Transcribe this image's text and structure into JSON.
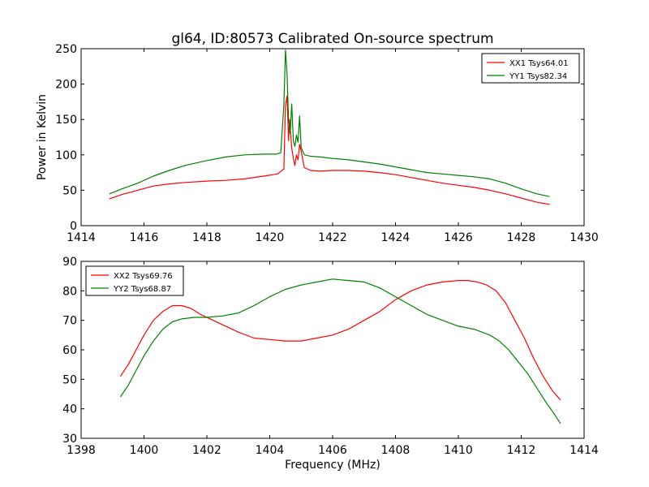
{
  "figure": {
    "title": "gl64, ID:80573 Calibrated On-source spectrum",
    "ylabel": "Power in Kelvin",
    "xlabel": "Frequency (MHz)"
  },
  "chart_data": [
    {
      "type": "line",
      "title": "gl64, ID:80573 Calibrated On-source spectrum",
      "ylabel": "Power in Kelvin",
      "xlabel": "",
      "xlim": [
        1414,
        1430
      ],
      "ylim": [
        0,
        250
      ],
      "xticks": [
        1414,
        1416,
        1418,
        1420,
        1422,
        1424,
        1426,
        1428,
        1430
      ],
      "yticks": [
        0,
        50,
        100,
        150,
        200,
        250
      ],
      "grid": false,
      "legend_position": "top-right",
      "series": [
        {
          "name": "XX1 Tsys64.01",
          "color": "#ff0000",
          "x": [
            1414.9,
            1415.3,
            1415.8,
            1416.3,
            1416.8,
            1417.3,
            1418.0,
            1418.6,
            1419.2,
            1419.8,
            1420.25,
            1420.45,
            1420.5,
            1420.55,
            1420.6,
            1420.63,
            1420.7,
            1420.75,
            1420.8,
            1420.85,
            1420.9,
            1420.95,
            1421.0,
            1421.1,
            1421.3,
            1421.6,
            1422.0,
            1422.5,
            1423.0,
            1423.5,
            1424.0,
            1424.5,
            1425.0,
            1425.5,
            1426.0,
            1426.5,
            1427.0,
            1427.5,
            1428.0,
            1428.5,
            1428.9
          ],
          "y": [
            38,
            44,
            50,
            56,
            59,
            61,
            63,
            64,
            66,
            70,
            73,
            80,
            170,
            183,
            120,
            150,
            110,
            95,
            85,
            100,
            93,
            115,
            105,
            82,
            78,
            77,
            78,
            78,
            77,
            75,
            72,
            68,
            64,
            60,
            57,
            54,
            50,
            45,
            39,
            33,
            30
          ]
        },
        {
          "name": "YY1 Tsys82.34",
          "color": "#008000",
          "x": [
            1414.9,
            1415.3,
            1415.8,
            1416.3,
            1416.8,
            1417.3,
            1418.0,
            1418.6,
            1419.2,
            1419.8,
            1420.2,
            1420.35,
            1420.45,
            1420.5,
            1420.55,
            1420.6,
            1420.65,
            1420.7,
            1420.75,
            1420.8,
            1420.85,
            1420.9,
            1420.95,
            1421.0,
            1421.1,
            1421.3,
            1421.6,
            1422.0,
            1422.5,
            1423.0,
            1423.5,
            1424.0,
            1424.5,
            1425.0,
            1425.5,
            1426.0,
            1426.5,
            1427.0,
            1427.5,
            1428.0,
            1428.5,
            1428.9
          ],
          "y": [
            45,
            52,
            60,
            70,
            78,
            85,
            92,
            97,
            100,
            101,
            101,
            103,
            170,
            248,
            215,
            150,
            130,
            172,
            120,
            112,
            128,
            118,
            155,
            110,
            100,
            98,
            97,
            95,
            93,
            90,
            87,
            83,
            79,
            75,
            73,
            71,
            69,
            66,
            60,
            52,
            45,
            41
          ]
        }
      ]
    },
    {
      "type": "line",
      "title": "",
      "xlabel": "Frequency (MHz)",
      "ylabel": "",
      "xlim": [
        1398,
        1414
      ],
      "ylim": [
        30,
        90
      ],
      "xticks": [
        1398,
        1400,
        1402,
        1404,
        1406,
        1408,
        1410,
        1412,
        1414
      ],
      "yticks": [
        30,
        40,
        50,
        60,
        70,
        80,
        90
      ],
      "grid": false,
      "legend_position": "top-left",
      "series": [
        {
          "name": "XX2 Tsys69.76",
          "color": "#ff0000",
          "x": [
            1399.25,
            1399.5,
            1399.75,
            1400.0,
            1400.3,
            1400.6,
            1400.9,
            1401.2,
            1401.5,
            1401.8,
            1402.2,
            1402.6,
            1403.0,
            1403.5,
            1404.0,
            1404.5,
            1405.0,
            1405.5,
            1406.0,
            1406.5,
            1407.0,
            1407.5,
            1408.0,
            1408.5,
            1409.0,
            1409.5,
            1410.0,
            1410.3,
            1410.6,
            1410.9,
            1411.2,
            1411.5,
            1411.8,
            1412.1,
            1412.4,
            1412.7,
            1413.0,
            1413.25
          ],
          "y": [
            51,
            55,
            60,
            65,
            70,
            73,
            75,
            75,
            74,
            72,
            70,
            68,
            66,
            64,
            63.5,
            63,
            63,
            64,
            65,
            67,
            70,
            73,
            77,
            80,
            82,
            83,
            83.5,
            83.5,
            83,
            82,
            80,
            76,
            70,
            64,
            57,
            51,
            46,
            43
          ]
        },
        {
          "name": "YY2 Tsys68.87",
          "color": "#008000",
          "x": [
            1399.25,
            1399.5,
            1399.75,
            1400.0,
            1400.3,
            1400.6,
            1400.9,
            1401.2,
            1401.6,
            1402.0,
            1402.5,
            1403.0,
            1403.5,
            1404.0,
            1404.5,
            1405.0,
            1405.5,
            1406.0,
            1406.5,
            1407.0,
            1407.5,
            1408.0,
            1408.5,
            1409.0,
            1409.5,
            1410.0,
            1410.5,
            1411.0,
            1411.3,
            1411.6,
            1411.9,
            1412.2,
            1412.5,
            1412.8,
            1413.0,
            1413.25
          ],
          "y": [
            44,
            48,
            53,
            58,
            63,
            67,
            69.5,
            70.5,
            71,
            71,
            71.5,
            72.5,
            75,
            78,
            80.5,
            82,
            83,
            84,
            83.5,
            83,
            81,
            78,
            75,
            72,
            70,
            68,
            67,
            65,
            63,
            60,
            56,
            52,
            47,
            42,
            39,
            35
          ]
        }
      ]
    }
  ]
}
